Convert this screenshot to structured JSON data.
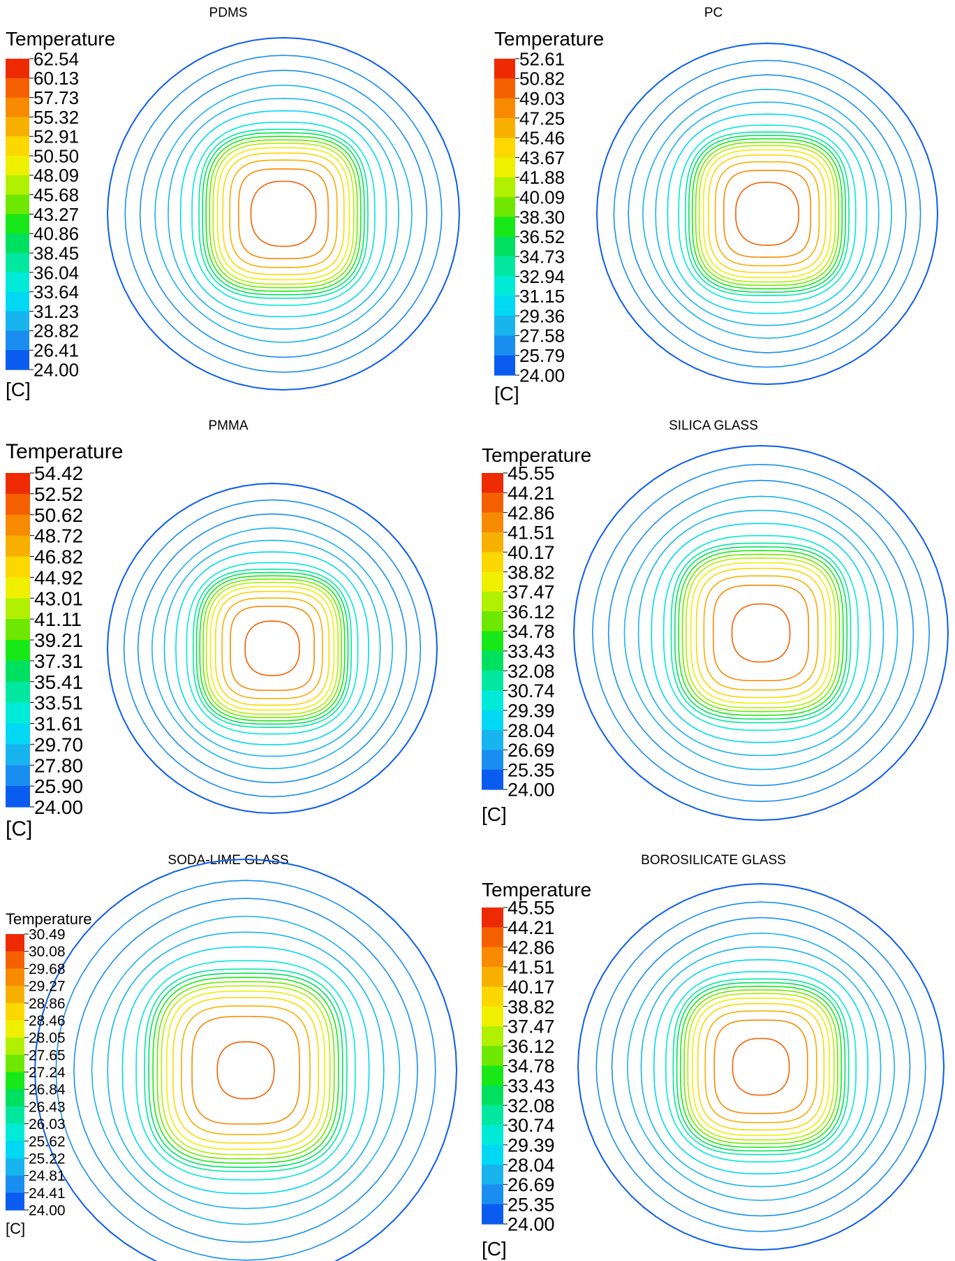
{
  "colormap": [
    "#0000ff",
    "#0a5cf0",
    "#1a8ef0",
    "#18b4ee",
    "#00d8f4",
    "#00ead8",
    "#00e8a0",
    "#00e060",
    "#18e818",
    "#6ee800",
    "#b0f000",
    "#eef000",
    "#fcd800",
    "#f8b000",
    "#f88a00",
    "#f46000",
    "#ee2a00"
  ],
  "panels": [
    {
      "id": "pdms",
      "title": "PDMS",
      "legend": {
        "title": "Temperature",
        "units": "[C]",
        "ticks": [
          "62.54",
          "60.13",
          "57.73",
          "55.32",
          "52.91",
          "50.50",
          "48.09",
          "45.68",
          "43.27",
          "40.86",
          "38.45",
          "36.04",
          "33.64",
          "31.23",
          "28.82",
          "26.41",
          "24.00"
        ]
      }
    },
    {
      "id": "pc",
      "title": "PC",
      "legend": {
        "title": "Temperature",
        "units": "[C]",
        "ticks": [
          "52.61",
          "50.82",
          "49.03",
          "47.25",
          "45.46",
          "43.67",
          "41.88",
          "40.09",
          "38.30",
          "36.52",
          "34.73",
          "32.94",
          "31.15",
          "29.36",
          "27.58",
          "25.79",
          "24.00"
        ]
      }
    },
    {
      "id": "pmma",
      "title": "PMMA",
      "legend": {
        "title": "Temperature",
        "units": "[C]",
        "ticks": [
          "54.42",
          "52.52",
          "50.62",
          "48.72",
          "46.82",
          "44.92",
          "43.01",
          "41.11",
          "39.21",
          "37.31",
          "35.41",
          "33.51",
          "31.61",
          "29.70",
          "27.80",
          "25.90",
          "24.00"
        ]
      }
    },
    {
      "id": "silica",
      "title": "SILICA GLASS",
      "legend": {
        "title": "Temperature",
        "units": "[C]",
        "ticks": [
          "45.55",
          "44.21",
          "42.86",
          "41.51",
          "40.17",
          "38.82",
          "37.47",
          "36.12",
          "34.78",
          "33.43",
          "32.08",
          "30.74",
          "29.39",
          "28.04",
          "26.69",
          "25.35",
          "24.00"
        ]
      }
    },
    {
      "id": "sodalime",
      "title": "SODA-LIME GLASS",
      "legend": {
        "title": "Temperature",
        "units": "[C]",
        "ticks": [
          "30.49",
          "30.08",
          "29.68",
          "29.27",
          "28.86",
          "28.46",
          "28.05",
          "27.65",
          "27.24",
          "26.84",
          "26.43",
          "26.03",
          "25.62",
          "25.22",
          "24.81",
          "24.41",
          "24.00"
        ]
      }
    },
    {
      "id": "borosilicate",
      "title": "BOROSILICATE GLASS",
      "legend": {
        "title": "Temperature",
        "units": "[C]",
        "ticks": [
          "45.55",
          "44.21",
          "42.86",
          "41.51",
          "40.17",
          "38.82",
          "37.47",
          "36.12",
          "34.78",
          "33.43",
          "32.08",
          "30.74",
          "29.39",
          "28.04",
          "26.69",
          "25.35",
          "24.00"
        ]
      }
    }
  ]
}
